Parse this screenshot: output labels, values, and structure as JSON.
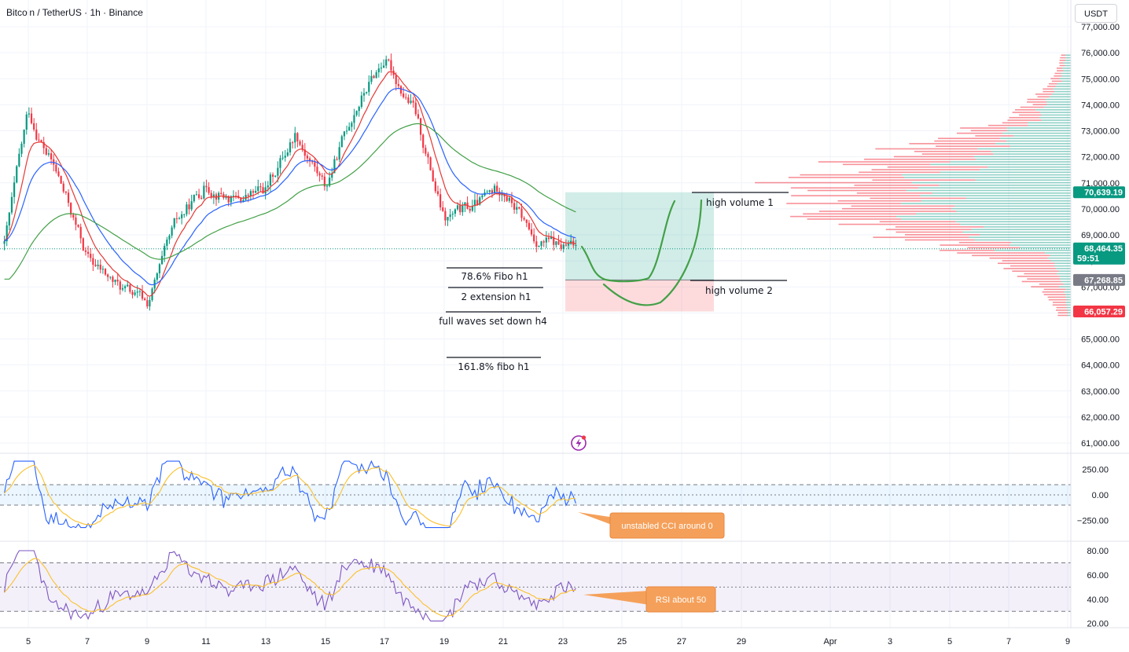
{
  "header": {
    "title": "Bitcoin / TetherUS · 1h · Binance",
    "currency": "USDT"
  },
  "price_axis": {
    "labels": [
      "77,000.00",
      "76,000.00",
      "75,000.00",
      "74,000.00",
      "73,000.00",
      "72,000.00",
      "71,000.00",
      "70,000.00",
      "69,000.00",
      "68,000.00",
      "67,000.00",
      "66,000.00",
      "65,000.00",
      "64,000.00",
      "63,000.00",
      "62,000.00",
      "61,000.00"
    ],
    "values": [
      77000,
      76000,
      75000,
      74000,
      73000,
      72000,
      71000,
      70000,
      69000,
      68000,
      67000,
      66000,
      65000,
      64000,
      63000,
      62000,
      61000
    ]
  },
  "time_axis": {
    "labels": [
      "5",
      "7",
      "9",
      "11",
      "13",
      "15",
      "17",
      "19",
      "21",
      "23",
      "25",
      "27",
      "29",
      "Apr",
      "3",
      "5",
      "7",
      "9"
    ]
  },
  "price_tags": [
    {
      "text": "70,639.19",
      "value": 70639.19,
      "color": "#089981"
    },
    {
      "text": "68,464.35",
      "value": 68464.35,
      "color": "#089981",
      "sub": "59:51"
    },
    {
      "text": "67,268.85",
      "value": 67268.85,
      "color": "#787b86"
    },
    {
      "text": "66,057.29",
      "value": 66057.29,
      "color": "#f23645"
    }
  ],
  "annotations": {
    "fibo_786": "78.6% Fibo h1",
    "ext_2": "2 extension h1",
    "full_waves": "full waves set down h4",
    "fibo_1618": "161.8% fibo h1",
    "high_vol_1": "high volume 1",
    "high_vol_2": "high volume 2"
  },
  "cci": {
    "labels": [
      "250.00",
      "0.00",
      "−250.00"
    ],
    "values": [
      250,
      0,
      -250
    ],
    "callout": "unstabled CCI around 0"
  },
  "rsi": {
    "labels": [
      "80.00",
      "60.00",
      "40.00",
      "20.00"
    ],
    "values": [
      80,
      60,
      40,
      20
    ],
    "callout": "RSI about 50"
  },
  "colors": {
    "bull": "#089981",
    "bear": "#f23645",
    "ema_fast": "#e53935",
    "ema_mid": "#2962ff",
    "ema_slow": "#43a047",
    "cci_line": "#2962ff",
    "signal": "#fbc02d",
    "rsi_line": "#7e57c2",
    "callout": "#f5a05a"
  },
  "chart_data": {
    "type": "line",
    "title": "Bitcoin / TetherUS · 1h · Binance",
    "ylim": [
      60500,
      77300
    ],
    "price_key_points": {
      "x": [
        "Mar 4",
        "Mar 5",
        "Mar 6",
        "Mar 7",
        "Mar 8",
        "Mar 9",
        "Mar 10",
        "Mar 11",
        "Mar 12",
        "Mar 13",
        "Mar 14",
        "Mar 15",
        "Mar 16",
        "Mar 17",
        "Mar 18",
        "Mar 19",
        "Mar 20",
        "Mar 21",
        "Mar 22",
        "Mar 23"
      ],
      "close": [
        68300,
        73700,
        71200,
        68100,
        67000,
        66300,
        69300,
        71000,
        70300,
        70700,
        73000,
        70800,
        73900,
        75800,
        73800,
        69500,
        70000,
        70900,
        68900,
        68460
      ]
    },
    "long_position": {
      "entry": 67268.85,
      "target": 70639.19,
      "stop": 66057.29
    },
    "current_price": 68464.35
  }
}
